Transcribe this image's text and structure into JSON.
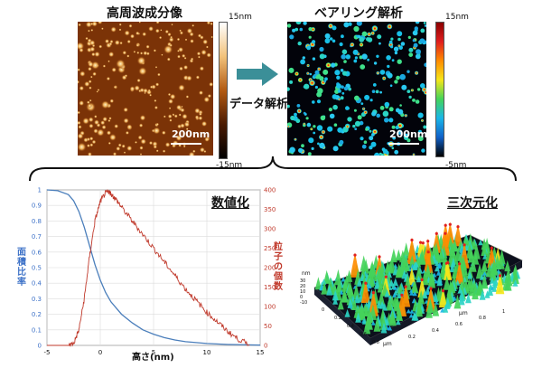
{
  "top": {
    "left_title": "高周波成分像",
    "right_title": "ベアリング解析",
    "arrow_label": "データ解析",
    "left_colorbar": {
      "max": "15nm",
      "min": "-15nm"
    },
    "right_colorbar": {
      "max": "15nm",
      "min": "-5nm"
    },
    "scalebar_left": "200nm",
    "scalebar_right": "200nm"
  },
  "bottom": {
    "chart_title": "数値化",
    "three_d_title": "三次元化",
    "three_d_zlabel": "nm",
    "three_d_xlabel": "μm",
    "three_d_ylabel": "μm",
    "three_d_zticks": [
      "30",
      "20",
      "10",
      "0",
      "-10"
    ],
    "three_d_xticks": [
      "0",
      "0.2",
      "0.4",
      "0.6",
      "0.8"
    ],
    "three_d_yticks": [
      "0.2",
      "0.4",
      "0.6",
      "0.8",
      "1"
    ]
  },
  "chart_data": {
    "type": "line",
    "xlabel": "高さ(nm)",
    "ylabel_left": "面積比率",
    "ylabel_right": "粒子の個数",
    "xlim": [
      -5,
      15
    ],
    "ylim_left": [
      0,
      1
    ],
    "ylim_right": [
      0,
      400
    ],
    "x_ticks": [
      -5,
      0,
      5,
      10,
      15
    ],
    "y_left_ticks": [
      0,
      0.1,
      0.2,
      0.3,
      0.4,
      0.5,
      0.6,
      0.7,
      0.8,
      0.9,
      1
    ],
    "y_right_ticks": [
      0,
      50,
      100,
      150,
      200,
      250,
      300,
      350,
      400
    ],
    "grid": true,
    "series": [
      {
        "axis": "left",
        "color": "#4a7ebb",
        "x": [
          -5,
          -4,
          -3,
          -2.5,
          -2,
          -1.5,
          -1,
          -0.5,
          0,
          0.5,
          1,
          2,
          3,
          4,
          5,
          6,
          7,
          8,
          10,
          12,
          15
        ],
        "y": [
          1.0,
          0.995,
          0.97,
          0.93,
          0.86,
          0.76,
          0.64,
          0.52,
          0.42,
          0.34,
          0.28,
          0.2,
          0.145,
          0.1,
          0.072,
          0.05,
          0.035,
          0.024,
          0.012,
          0.006,
          0.002
        ]
      },
      {
        "axis": "right",
        "color": "#c0392b",
        "x": [
          -5,
          -3,
          -2.5,
          -2,
          -1.5,
          -1,
          -0.5,
          0,
          0.5,
          0.8,
          1,
          1.5,
          2,
          3,
          4,
          5,
          6,
          7,
          8,
          9,
          10,
          11,
          12,
          13,
          14
        ],
        "y": [
          0,
          0,
          5,
          40,
          120,
          230,
          320,
          370,
          392,
          396,
          390,
          375,
          355,
          320,
          285,
          250,
          215,
          180,
          145,
          115,
          85,
          60,
          35,
          15,
          2
        ]
      }
    ]
  }
}
